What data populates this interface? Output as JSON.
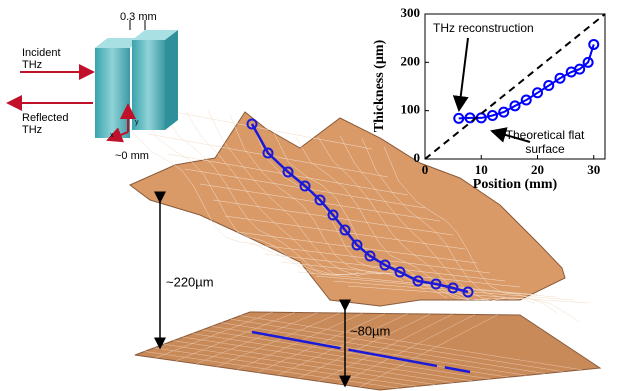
{
  "chart_data": {
    "type": "line",
    "x_label": "Position (mm)",
    "y_label": "Thickness (µm)",
    "xlim": [
      0,
      32
    ],
    "ylim": [
      0,
      300
    ],
    "xticks": [
      0,
      10,
      20,
      30
    ],
    "yticks": [
      0,
      100,
      200,
      300
    ],
    "series": [
      {
        "name": "THz reconstruction",
        "color": "#0000ff",
        "marker": "circle",
        "x": [
          6,
          8,
          10,
          12,
          14,
          16,
          18,
          20,
          22,
          24,
          26,
          27.5,
          29,
          30
        ],
        "values": [
          84,
          85,
          85,
          90,
          97,
          110,
          122,
          137,
          152,
          167,
          180,
          186,
          200,
          237
        ]
      },
      {
        "name": "Theoretical flat surface",
        "color": "#000000",
        "dash": true,
        "x": [
          0,
          32
        ],
        "values": [
          0,
          300
        ]
      }
    ]
  },
  "schematic": {
    "gap_label": "0.3 mm",
    "incident_label": [
      "Incident",
      "THz"
    ],
    "reflected_label": [
      "Reflected",
      "THz"
    ],
    "offset_label": "~0 mm",
    "axis_x": "x",
    "axis_y": "y"
  },
  "surface": {
    "height_label": "~220µm",
    "depth_label": "~80µm"
  }
}
